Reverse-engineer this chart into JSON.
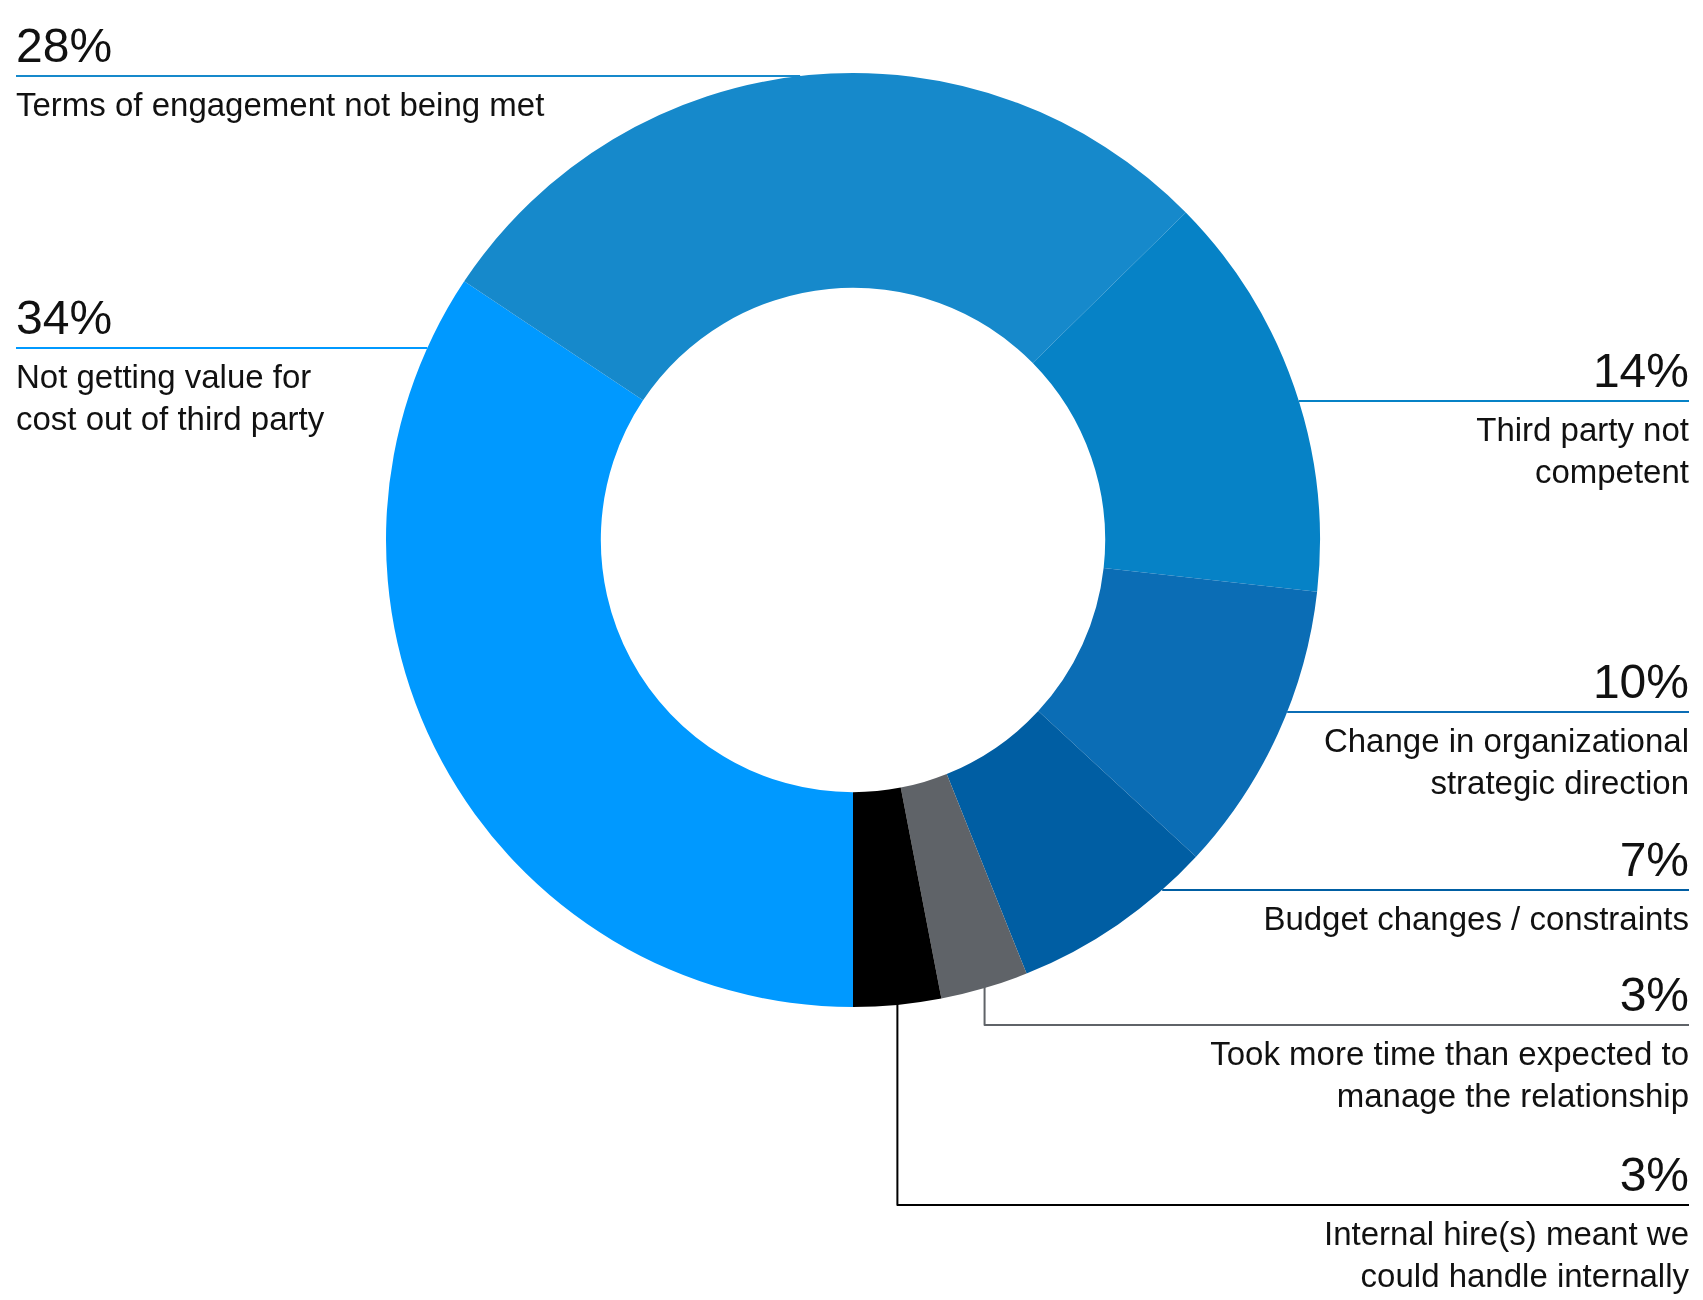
{
  "chart_data": {
    "type": "donut",
    "categories": [
      "Not getting value for\ncost out of third party",
      "Terms of engagement not being met",
      "Third party not\ncompetent",
      "Change in organizational\nstrategic direction",
      "Budget changes / constraints",
      "Took more time than expected to\nmanage the relationship",
      "Internal hire(s) meant we\ncould handle internally"
    ],
    "values": [
      34,
      28,
      14,
      10,
      7,
      3,
      3
    ],
    "value_labels": [
      "34%",
      "28%",
      "14%",
      "10%",
      "7%",
      "3%",
      "3%"
    ],
    "colors": [
      "#0099ff",
      "#1689cb",
      "#0682c6",
      "#0b6db5",
      "#005ea3",
      "#5f6368",
      "#000000"
    ]
  }
}
